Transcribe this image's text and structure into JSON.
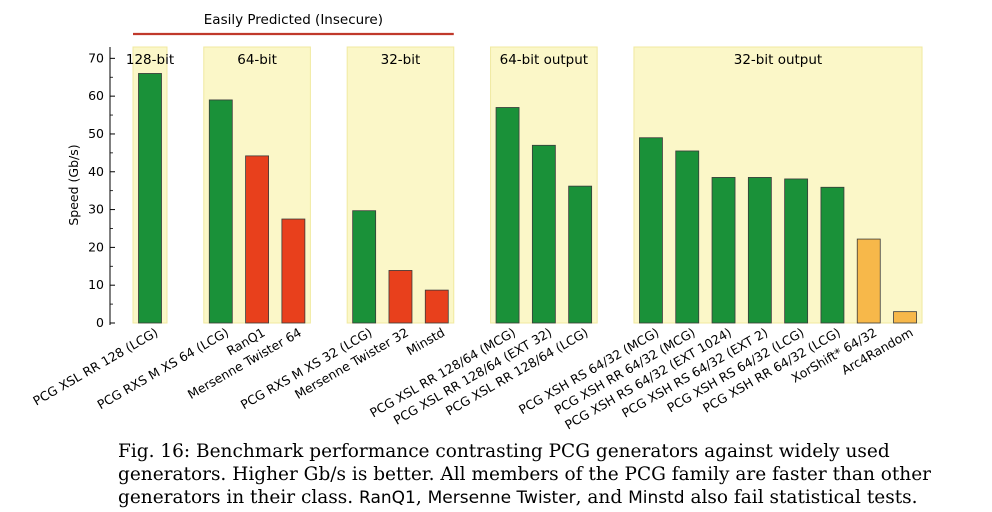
{
  "chart_data": {
    "type": "bar",
    "ylabel": "Speed (Gb/s)",
    "ylim": [
      0,
      73
    ],
    "yticks": [
      0,
      10,
      20,
      30,
      40,
      50,
      60,
      70
    ],
    "grid": false,
    "annotation": "Easily Predicted (Insecure)",
    "colors": {
      "pcg": "#1a9139",
      "insecure": "#e8401c",
      "other": "#f7b84a",
      "group_bg": "#fbf7c8",
      "annotation_line": "#c0392b"
    },
    "groups": [
      {
        "label": "128-bit",
        "bars": [
          {
            "name": "PCG XSL RR 128 (LCG)",
            "value": 66,
            "kind": "pcg"
          }
        ]
      },
      {
        "label": "64-bit",
        "bars": [
          {
            "name": "PCG RXS M XS 64 (LCG)",
            "value": 59,
            "kind": "pcg"
          },
          {
            "name": "RanQ1",
            "value": 44.2,
            "kind": "insecure"
          },
          {
            "name": "Mersenne Twister 64",
            "value": 27.5,
            "kind": "insecure"
          }
        ]
      },
      {
        "label": "32-bit",
        "bars": [
          {
            "name": "PCG RXS M XS 32 (LCG)",
            "value": 29.7,
            "kind": "pcg"
          },
          {
            "name": "Mersenne Twister 32",
            "value": 13.9,
            "kind": "insecure"
          },
          {
            "name": "Minstd",
            "value": 8.7,
            "kind": "insecure"
          }
        ]
      },
      {
        "label": "64-bit output",
        "bars": [
          {
            "name": "PCG XSL RR 128/64 (MCG)",
            "value": 57,
            "kind": "pcg"
          },
          {
            "name": "PCG XSL RR 128/64 (EXT 32)",
            "value": 47,
            "kind": "pcg"
          },
          {
            "name": "PCG XSL RR 128/64 (LCG)",
            "value": 36.2,
            "kind": "pcg"
          }
        ]
      },
      {
        "label": "32-bit output",
        "bars": [
          {
            "name": "PCG XSH RS 64/32 (MCG)",
            "value": 49,
            "kind": "pcg"
          },
          {
            "name": "PCG XSH RR 64/32 (MCG)",
            "value": 45.5,
            "kind": "pcg"
          },
          {
            "name": "PCG XSH RS 64/32 (EXT 1024)",
            "value": 38.5,
            "kind": "pcg"
          },
          {
            "name": "PCG XSH RS 64/32 (EXT 2)",
            "value": 38.5,
            "kind": "pcg"
          },
          {
            "name": "PCG XSH RS 64/32 (LCG)",
            "value": 38.1,
            "kind": "pcg"
          },
          {
            "name": "PCG XSH RR 64/32 (LCG)",
            "value": 35.9,
            "kind": "pcg"
          },
          {
            "name": "XorShift* 64/32",
            "value": 22.2,
            "kind": "other"
          },
          {
            "name": "Arc4Random",
            "value": 3,
            "kind": "other"
          }
        ]
      }
    ]
  },
  "caption": {
    "part1": "Fig. 16: Benchmark performance contrasting PCG generators against widely used generators. Higher Gb/s is better. All members of the PCG family are faster than other generators in their class. ",
    "part2": "RanQ1",
    "part3": ", ",
    "part4": "Mersenne Twister",
    "part5": ", and ",
    "part6": "Minstd",
    "part7": " also fail statistical tests."
  }
}
